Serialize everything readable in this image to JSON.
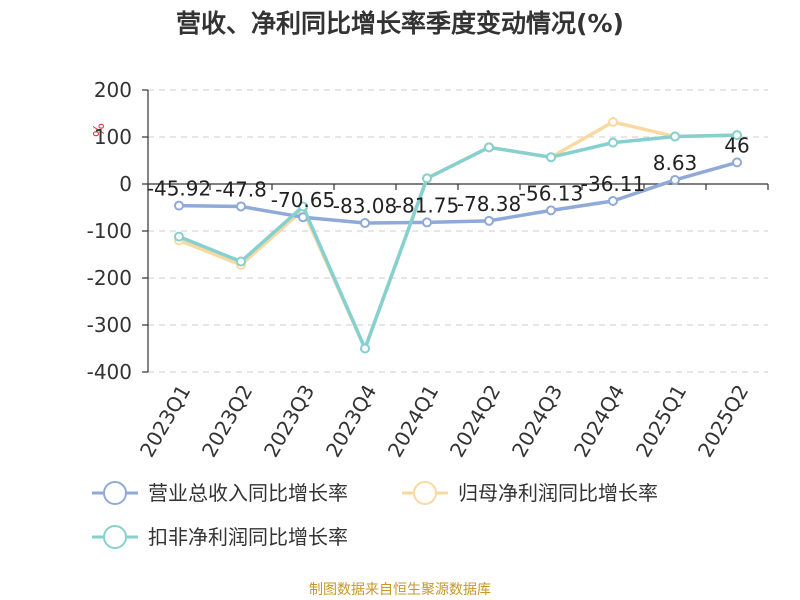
{
  "chart_data": {
    "type": "line",
    "title": "营收、净利同比增长率季度变动情况(%)",
    "ylabel": "%",
    "xlabel": "",
    "categories": [
      "2023Q1",
      "2023Q2",
      "2023Q3",
      "2023Q4",
      "2024Q1",
      "2024Q2",
      "2024Q3",
      "2024Q4",
      "2025Q1",
      "2025Q2"
    ],
    "ylim": [
      -400,
      200
    ],
    "yticks": [
      200,
      100,
      0,
      -100,
      -200,
      -300,
      -400
    ],
    "grid": true,
    "legend_position": "bottom",
    "series": [
      {
        "name": "营业总收入同比增长率",
        "color": "#8fa9d8",
        "values": [
          -45.92,
          -47.8,
          -70.65,
          -83.08,
          -81.75,
          -78.38,
          -56.13,
          -36.11,
          8.63,
          46
        ],
        "data_labels": [
          "-45.92",
          "-47.8",
          "-70.65",
          "-83.08",
          "-81.75",
          "-78.38",
          "-56.13",
          "-36.11",
          "8.63",
          "46"
        ]
      },
      {
        "name": "归母净利润同比增长率",
        "color": "#f9d9a0",
        "values": [
          -120,
          -172,
          -55,
          -350,
          12,
          78,
          57,
          132,
          101,
          104
        ]
      },
      {
        "name": "扣非净利润同比增长率",
        "color": "#86d0d0",
        "values": [
          -112,
          -165,
          -48,
          -350,
          12,
          78,
          57,
          88,
          101,
          104
        ]
      }
    ]
  },
  "source": "制图数据来自恒生聚源数据库"
}
